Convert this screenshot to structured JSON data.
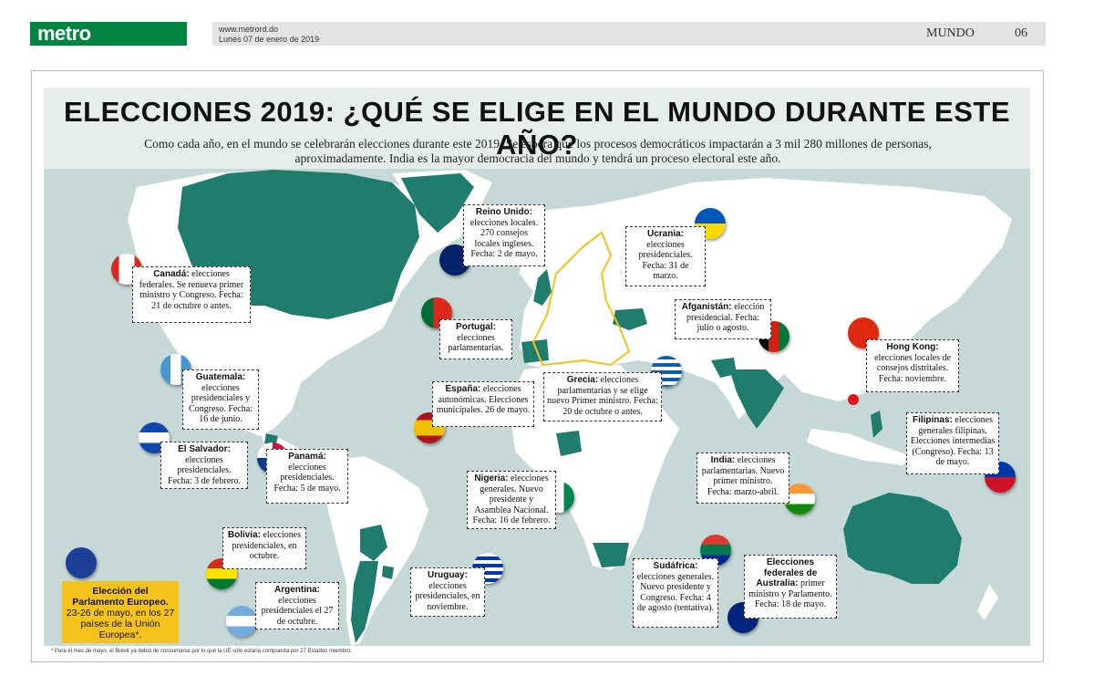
{
  "header": {
    "logo": "metro",
    "site": "www.metrord.do",
    "date": "Lunes 07 de enero de 2019",
    "section": "MUNDO",
    "page": "06"
  },
  "title": "ELECCIONES 2019: ¿QUÉ SE ELIGE EN EL MUNDO DURANTE ESTE AÑO?",
  "subtitle_line1": "Como cada año, en el mundo se celebrarán elecciones durante este 2019. Se espera que los procesos democráticos impactarán a 3 mil 280 millones de personas,",
  "subtitle_line2": "aproximadamente. India es la mayor democracia del mundo y tendrá un proceso electoral este año.",
  "countries": {
    "canada": {
      "name": "Canadá:",
      "text": "elecciones federales. Se renueva primer ministro y Congreso. Fecha: 21 de octubre o antes."
    },
    "guatemala": {
      "name": "Guatemala:",
      "text": "elecciones presidenciales y Congreso. Fecha: 16 de junio."
    },
    "elsalvador": {
      "name": "El Salvador:",
      "text": "elecciones presidenciales. Fecha: 3 de febrero."
    },
    "panama": {
      "name": "Panamá:",
      "text": "elecciones presidenciales. Fecha: 5 de mayo."
    },
    "bolivia": {
      "name": "Bolivia:",
      "text": "elecciones presidenciales, en octubre."
    },
    "argentina": {
      "name": "Argentina:",
      "text": "elecciones presidenciales el 27 de octubre."
    },
    "uruguay": {
      "name": "Uruguay:",
      "text": "elecciones presidenciales, en noviembre."
    },
    "reinounido": {
      "name": "Reino Unido:",
      "text": "elecciones locales. 270 consejos locales ingleses. Fecha: 2 de mayo."
    },
    "portugal": {
      "name": "Portugal:",
      "text": "elecciones parlamentarias."
    },
    "espana": {
      "name": "España:",
      "text": "elecciones autonómicas. Elecciones municipales. 26 de mayo."
    },
    "nigeria": {
      "name": "Nigeria:",
      "text": "elecciones generales. Nuevo presidente y Asamblea Nacional. Fecha: 16 de febrero."
    },
    "ucrania": {
      "name": "Ucrania:",
      "text": "elecciones presidenciales. Fecha: 31 de marzo."
    },
    "grecia": {
      "name": "Grecia:",
      "text": "elecciones parlamentarias y se elige nuevo Primer ministro. Fecha: 20 de octubre o antes."
    },
    "afganistan": {
      "name": "Afganistán:",
      "text": "elección presidencial. Fecha: julio o agosto."
    },
    "hongkong": {
      "name": "Hong Kong:",
      "text": "elecciones locales de consejos distritales. Fecha: noviembre."
    },
    "filipinas": {
      "name": "Filipinas:",
      "text": "elecciones generales filipinas. Elecciones intermedias (Congreso). Fecha: 13 de mayo."
    },
    "india": {
      "name": "India:",
      "text": "elecciones parlamentarias. Nuevo primer ministro. Fecha: marzo-abril."
    },
    "sudafrica": {
      "name": "Sudáfrica:",
      "text": "elecciones generales. Nuevo presidente y Congreso. Fecha: 4 de agosto (tentativa)."
    },
    "australia": {
      "name": "Elecciones federales de Australia:",
      "text": "primer ministro y Parlamento. Fecha: 18 de mayo."
    }
  },
  "eu": {
    "name": "Elección del Parlamento Europeo.",
    "text": "23-26 de mayo, en los 27 países de la Unión Europea*."
  },
  "footnote": "* Para el mes de mayo, el Brexit ya debió de consumarse por lo que la UE sólo estaría compuesta por 27 Estados miembro.",
  "colors": {
    "land": "#ffffff",
    "highlight": "#207d6e",
    "ocean": "#c6d9d6",
    "eu_bg": "#f6c31c",
    "brand": "#00843f"
  }
}
